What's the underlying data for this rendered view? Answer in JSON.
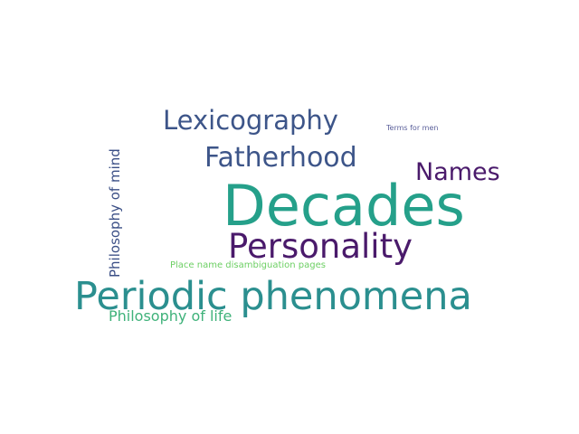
{
  "words": [
    {
      "id": "decades",
      "text": "Decades",
      "color": "#25a08a"
    },
    {
      "id": "periodic-phenomena",
      "text": "Periodic phenomena",
      "color": "#2b8f8f"
    },
    {
      "id": "personality",
      "text": "Personality",
      "color": "#4a1a6b"
    },
    {
      "id": "lexicography",
      "text": "Lexicography",
      "color": "#3d5589"
    },
    {
      "id": "fatherhood",
      "text": "Fatherhood",
      "color": "#3d5589"
    },
    {
      "id": "names",
      "text": "Names",
      "color": "#4a1a6b"
    },
    {
      "id": "philosophy-of-mind",
      "text": "Philosophy of mind",
      "color": "#3b4f86"
    },
    {
      "id": "philosophy-of-life",
      "text": "Philosophy of life",
      "color": "#3fb27a"
    },
    {
      "id": "place-name-disambiguation",
      "text": "Place name disambiguation pages",
      "color": "#6ccf63"
    },
    {
      "id": "terms-for-men",
      "text": "Terms for men",
      "color": "#5a5f9a"
    }
  ]
}
